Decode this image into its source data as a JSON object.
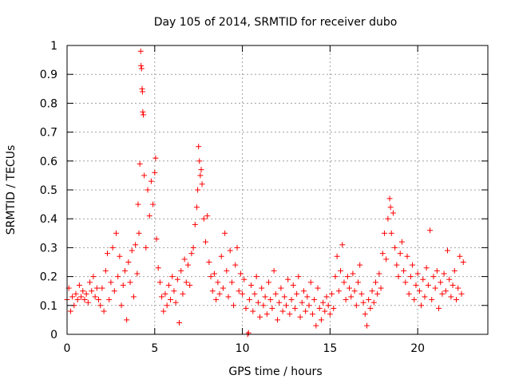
{
  "chart_data": {
    "type": "scatter",
    "title": "Day 105 of 2014, SRMTID for receiver dubo",
    "xlabel": "GPS time / hours",
    "ylabel": "SRMTID / TECUs",
    "xlim": [
      0,
      24
    ],
    "ylim": [
      0,
      1
    ],
    "xticks": [
      0,
      5,
      10,
      15,
      20
    ],
    "xtick_labels": [
      "0",
      "5",
      "10",
      "15",
      "20"
    ],
    "yticks": [
      0,
      0.1,
      0.2,
      0.3,
      0.4,
      0.5,
      0.6,
      0.7,
      0.8,
      0.9,
      1
    ],
    "ytick_labels": [
      "0",
      "0.1",
      "0.2",
      "0.3",
      "0.4",
      "0.5",
      "0.6",
      "0.7",
      "0.8",
      "0.9",
      "1"
    ],
    "grid": true,
    "marker": "+",
    "series_color": "#ff0000",
    "series": [
      {
        "name": "SRMTID",
        "points": [
          [
            0.0,
            0.12
          ],
          [
            0.1,
            0.16
          ],
          [
            0.2,
            0.08
          ],
          [
            0.3,
            0.13
          ],
          [
            0.4,
            0.1
          ],
          [
            0.5,
            0.14
          ],
          [
            0.6,
            0.12
          ],
          [
            0.7,
            0.17
          ],
          [
            0.8,
            0.13
          ],
          [
            0.9,
            0.15
          ],
          [
            1.0,
            0.12
          ],
          [
            1.1,
            0.14
          ],
          [
            1.2,
            0.11
          ],
          [
            1.3,
            0.18
          ],
          [
            1.4,
            0.15
          ],
          [
            1.5,
            0.2
          ],
          [
            1.6,
            0.13
          ],
          [
            1.7,
            0.16
          ],
          [
            1.8,
            0.12
          ],
          [
            1.9,
            0.1
          ],
          [
            2.0,
            0.16
          ],
          [
            2.1,
            0.08
          ],
          [
            2.2,
            0.22
          ],
          [
            2.3,
            0.28
          ],
          [
            2.4,
            0.12
          ],
          [
            2.5,
            0.18
          ],
          [
            2.6,
            0.3
          ],
          [
            2.7,
            0.15
          ],
          [
            2.8,
            0.35
          ],
          [
            2.9,
            0.2
          ],
          [
            3.0,
            0.27
          ],
          [
            3.1,
            0.1
          ],
          [
            3.2,
            0.17
          ],
          [
            3.3,
            0.22
          ],
          [
            3.4,
            0.05
          ],
          [
            3.5,
            0.25
          ],
          [
            3.6,
            0.18
          ],
          [
            3.7,
            0.29
          ],
          [
            3.8,
            0.13
          ],
          [
            3.9,
            0.31
          ],
          [
            4.0,
            0.21
          ],
          [
            4.05,
            0.45
          ],
          [
            4.1,
            0.35
          ],
          [
            4.15,
            0.59
          ],
          [
            4.2,
            0.98
          ],
          [
            4.22,
            0.93
          ],
          [
            4.25,
            0.92
          ],
          [
            4.28,
            0.85
          ],
          [
            4.3,
            0.84
          ],
          [
            4.32,
            0.77
          ],
          [
            4.35,
            0.76
          ],
          [
            4.4,
            0.55
          ],
          [
            4.5,
            0.3
          ],
          [
            4.6,
            0.5
          ],
          [
            4.7,
            0.41
          ],
          [
            4.8,
            0.53
          ],
          [
            4.9,
            0.45
          ],
          [
            5.0,
            0.56
          ],
          [
            5.05,
            0.61
          ],
          [
            5.1,
            0.33
          ],
          [
            5.2,
            0.23
          ],
          [
            5.3,
            0.18
          ],
          [
            5.4,
            0.13
          ],
          [
            5.5,
            0.08
          ],
          [
            5.6,
            0.14
          ],
          [
            5.7,
            0.1
          ],
          [
            5.8,
            0.17
          ],
          [
            5.9,
            0.12
          ],
          [
            6.0,
            0.2
          ],
          [
            6.1,
            0.15
          ],
          [
            6.2,
            0.11
          ],
          [
            6.3,
            0.19
          ],
          [
            6.4,
            0.04
          ],
          [
            6.5,
            0.22
          ],
          [
            6.6,
            0.14
          ],
          [
            6.7,
            0.26
          ],
          [
            6.8,
            0.18
          ],
          [
            6.9,
            0.24
          ],
          [
            7.0,
            0.17
          ],
          [
            7.1,
            0.28
          ],
          [
            7.2,
            0.3
          ],
          [
            7.3,
            0.38
          ],
          [
            7.4,
            0.44
          ],
          [
            7.45,
            0.5
          ],
          [
            7.5,
            0.65
          ],
          [
            7.55,
            0.6
          ],
          [
            7.6,
            0.55
          ],
          [
            7.65,
            0.57
          ],
          [
            7.7,
            0.52
          ],
          [
            7.8,
            0.4
          ],
          [
            7.9,
            0.32
          ],
          [
            8.0,
            0.41
          ],
          [
            8.1,
            0.25
          ],
          [
            8.2,
            0.2
          ],
          [
            8.3,
            0.15
          ],
          [
            8.4,
            0.21
          ],
          [
            8.5,
            0.12
          ],
          [
            8.6,
            0.18
          ],
          [
            8.7,
            0.14
          ],
          [
            8.8,
            0.27
          ],
          [
            8.9,
            0.16
          ],
          [
            9.0,
            0.35
          ],
          [
            9.1,
            0.22
          ],
          [
            9.2,
            0.13
          ],
          [
            9.3,
            0.29
          ],
          [
            9.4,
            0.18
          ],
          [
            9.5,
            0.1
          ],
          [
            9.6,
            0.24
          ],
          [
            9.7,
            0.3
          ],
          [
            9.8,
            0.15
          ],
          [
            9.9,
            0.21
          ],
          [
            10.0,
            0.14
          ],
          [
            10.1,
            0.19
          ],
          [
            10.2,
            0.09
          ],
          [
            10.3,
            0.0
          ],
          [
            10.35,
            0.005
          ],
          [
            10.4,
            0.12
          ],
          [
            10.5,
            0.17
          ],
          [
            10.6,
            0.08
          ],
          [
            10.7,
            0.14
          ],
          [
            10.8,
            0.2
          ],
          [
            10.9,
            0.11
          ],
          [
            11.0,
            0.06
          ],
          [
            11.1,
            0.16
          ],
          [
            11.2,
            0.1
          ],
          [
            11.3,
            0.13
          ],
          [
            11.4,
            0.07
          ],
          [
            11.5,
            0.18
          ],
          [
            11.6,
            0.12
          ],
          [
            11.7,
            0.09
          ],
          [
            11.8,
            0.22
          ],
          [
            11.9,
            0.14
          ],
          [
            12.0,
            0.05
          ],
          [
            12.1,
            0.11
          ],
          [
            12.2,
            0.16
          ],
          [
            12.3,
            0.08
          ],
          [
            12.4,
            0.13
          ],
          [
            12.5,
            0.1
          ],
          [
            12.6,
            0.19
          ],
          [
            12.7,
            0.07
          ],
          [
            12.8,
            0.12
          ],
          [
            12.9,
            0.17
          ],
          [
            13.0,
            0.09
          ],
          [
            13.1,
            0.14
          ],
          [
            13.2,
            0.2
          ],
          [
            13.3,
            0.06
          ],
          [
            13.4,
            0.11
          ],
          [
            13.5,
            0.15
          ],
          [
            13.6,
            0.08
          ],
          [
            13.7,
            0.13
          ],
          [
            13.8,
            0.1
          ],
          [
            13.9,
            0.18
          ],
          [
            14.0,
            0.07
          ],
          [
            14.1,
            0.12
          ],
          [
            14.2,
            0.03
          ],
          [
            14.3,
            0.16
          ],
          [
            14.4,
            0.09
          ],
          [
            14.5,
            0.05
          ],
          [
            14.6,
            0.11
          ],
          [
            14.7,
            0.08
          ],
          [
            14.8,
            0.13
          ],
          [
            14.9,
            0.1
          ],
          [
            15.0,
            0.07
          ],
          [
            15.1,
            0.14
          ],
          [
            15.2,
            0.09
          ],
          [
            15.3,
            0.2
          ],
          [
            15.4,
            0.27
          ],
          [
            15.5,
            0.15
          ],
          [
            15.6,
            0.22
          ],
          [
            15.7,
            0.31
          ],
          [
            15.8,
            0.18
          ],
          [
            15.9,
            0.12
          ],
          [
            16.0,
            0.2
          ],
          [
            16.1,
            0.16
          ],
          [
            16.2,
            0.13
          ],
          [
            16.3,
            0.21
          ],
          [
            16.4,
            0.15
          ],
          [
            16.5,
            0.1
          ],
          [
            16.6,
            0.18
          ],
          [
            16.7,
            0.24
          ],
          [
            16.8,
            0.14
          ],
          [
            16.9,
            0.11
          ],
          [
            17.0,
            0.07
          ],
          [
            17.1,
            0.03
          ],
          [
            17.2,
            0.12
          ],
          [
            17.3,
            0.09
          ],
          [
            17.4,
            0.15
          ],
          [
            17.5,
            0.11
          ],
          [
            17.6,
            0.18
          ],
          [
            17.7,
            0.14
          ],
          [
            17.8,
            0.21
          ],
          [
            17.9,
            0.16
          ],
          [
            18.0,
            0.28
          ],
          [
            18.1,
            0.35
          ],
          [
            18.2,
            0.26
          ],
          [
            18.3,
            0.4
          ],
          [
            18.4,
            0.47
          ],
          [
            18.45,
            0.44
          ],
          [
            18.5,
            0.35
          ],
          [
            18.6,
            0.42
          ],
          [
            18.7,
            0.3
          ],
          [
            18.8,
            0.24
          ],
          [
            18.9,
            0.2
          ],
          [
            19.0,
            0.28
          ],
          [
            19.1,
            0.32
          ],
          [
            19.2,
            0.22
          ],
          [
            19.3,
            0.18
          ],
          [
            19.4,
            0.27
          ],
          [
            19.5,
            0.14
          ],
          [
            19.6,
            0.2
          ],
          [
            19.7,
            0.24
          ],
          [
            19.8,
            0.12
          ],
          [
            19.9,
            0.17
          ],
          [
            20.0,
            0.21
          ],
          [
            20.1,
            0.15
          ],
          [
            20.2,
            0.1
          ],
          [
            20.3,
            0.19
          ],
          [
            20.4,
            0.13
          ],
          [
            20.5,
            0.23
          ],
          [
            20.6,
            0.17
          ],
          [
            20.7,
            0.36
          ],
          [
            20.8,
            0.12
          ],
          [
            20.9,
            0.2
          ],
          [
            21.0,
            0.16
          ],
          [
            21.1,
            0.22
          ],
          [
            21.2,
            0.09
          ],
          [
            21.3,
            0.18
          ],
          [
            21.4,
            0.14
          ],
          [
            21.5,
            0.21
          ],
          [
            21.6,
            0.15
          ],
          [
            21.7,
            0.29
          ],
          [
            21.8,
            0.19
          ],
          [
            21.9,
            0.13
          ],
          [
            22.0,
            0.17
          ],
          [
            22.1,
            0.22
          ],
          [
            22.2,
            0.12
          ],
          [
            22.3,
            0.16
          ],
          [
            22.4,
            0.27
          ],
          [
            22.5,
            0.14
          ],
          [
            22.6,
            0.25
          ]
        ]
      }
    ]
  }
}
